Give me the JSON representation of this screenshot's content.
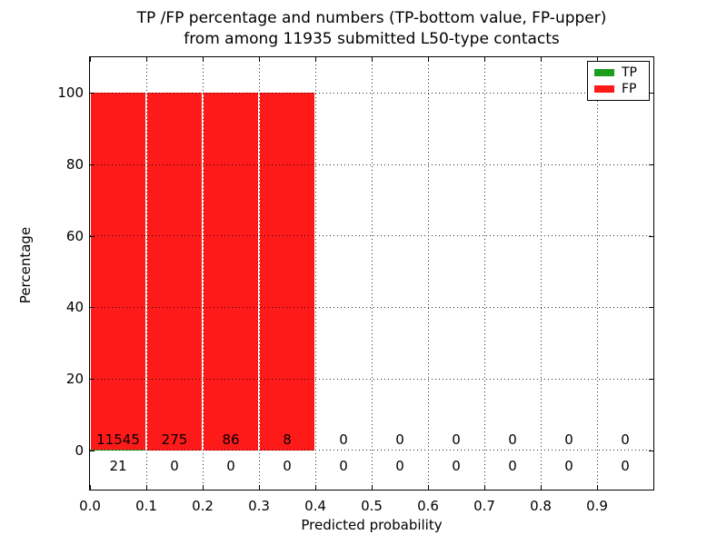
{
  "chart_data": {
    "type": "bar",
    "title_line1": "TP /FP percentage and numbers (TP-bottom value, FP-upper)",
    "title_line2": "from among 11935 submitted L50-type contacts",
    "xlabel": "Predicted probability",
    "ylabel": "Percentage",
    "total_submitted": 11935,
    "xlim": [
      0.0,
      1.0
    ],
    "ylim": [
      -11,
      110
    ],
    "bin_starts": [
      0.0,
      0.1,
      0.2,
      0.3,
      0.4,
      0.5,
      0.6,
      0.7,
      0.8,
      0.9
    ],
    "bin_width": 0.1,
    "x_tick_labels": [
      "0.0",
      "0.1",
      "0.2",
      "0.3",
      "0.4",
      "0.5",
      "0.6",
      "0.7",
      "0.8",
      "0.9"
    ],
    "y_tick_values": [
      0,
      20,
      40,
      60,
      80,
      100
    ],
    "y_tick_labels": [
      "0",
      "20",
      "40",
      "60",
      "80",
      "100"
    ],
    "grid_style": "dotted",
    "series": [
      {
        "name": "TP",
        "color": "#1e9e1e",
        "counts": [
          21,
          0,
          0,
          0,
          0,
          0,
          0,
          0,
          0,
          0
        ],
        "percentages": [
          0.18,
          0,
          0,
          0,
          0,
          0,
          0,
          0,
          0,
          0
        ]
      },
      {
        "name": "FP",
        "color": "#ff1a1a",
        "counts": [
          11545,
          275,
          86,
          8,
          0,
          0,
          0,
          0,
          0,
          0
        ],
        "percentages": [
          99.82,
          100,
          100,
          100,
          0,
          0,
          0,
          0,
          0,
          0
        ]
      }
    ],
    "legend": {
      "position": "upper right",
      "entries": [
        {
          "label": "TP",
          "color": "#1e9e1e"
        },
        {
          "label": "FP",
          "color": "#ff1a1a"
        }
      ]
    }
  }
}
